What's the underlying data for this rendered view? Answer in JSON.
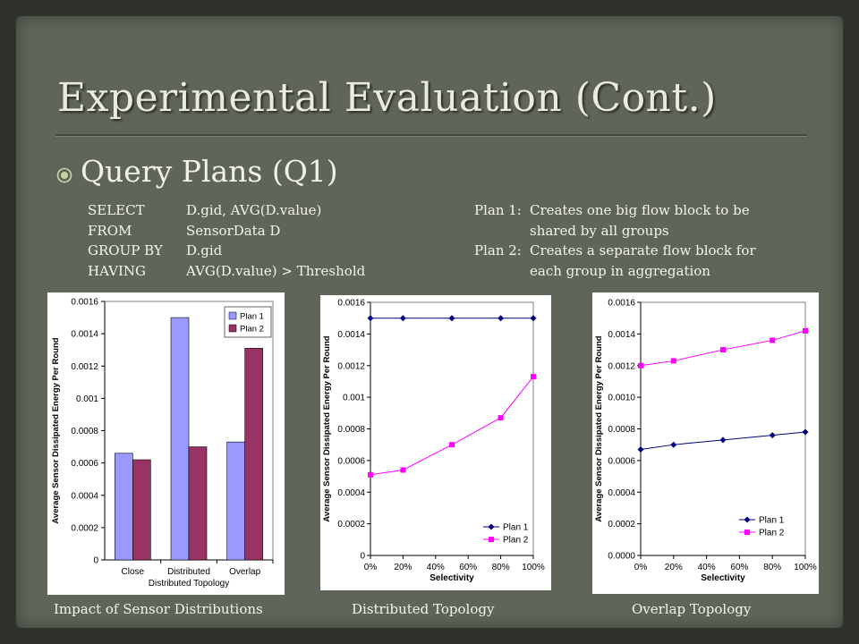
{
  "slide": {
    "title": "Experimental Evaluation (Cont.)",
    "bullet_icon": "circle-dot-bullet",
    "subheading": "Query Plans (Q1)",
    "sql": [
      {
        "keyword": "SELECT",
        "clause": "D.gid, AVG(D.value)"
      },
      {
        "keyword": "FROM",
        "clause": "SensorData D"
      },
      {
        "keyword": "GROUP BY",
        "clause": "D.gid"
      },
      {
        "keyword": "HAVING",
        "clause": "AVG(D.value) > Threshold"
      }
    ],
    "plans": [
      {
        "label": "Plan 1:",
        "line1": "Creates one big flow block to be",
        "line2": "shared by all groups"
      },
      {
        "label": "Plan 2:",
        "line1": "Creates a separate flow block for",
        "line2": "each group in aggregation"
      }
    ],
    "captions": [
      "Impact of Sensor Distributions",
      "Distributed Topology",
      "Overlap Topology"
    ],
    "colors": {
      "background": "#5f6559",
      "plan1_bar": "#9999ff",
      "plan2_bar": "#993366",
      "plan1_line": "#000080",
      "plan2_line": "#ff00ff"
    }
  },
  "chart_data": [
    {
      "type": "bar",
      "ylabel": "Average Sensor Dissipated Energy Per Round",
      "xlabel": "Distributed Topology",
      "categories": [
        "Close",
        "Distributed",
        "Overlap"
      ],
      "series": [
        {
          "name": "Plan 1",
          "values": [
            0.00066,
            0.0015,
            0.00073
          ]
        },
        {
          "name": "Plan 2",
          "values": [
            0.00062,
            0.0007,
            0.00131
          ]
        }
      ],
      "ylim": [
        0,
        0.0016
      ],
      "yticks": [
        "0",
        "0.0002",
        "0.0004",
        "0.0006",
        "0.0008",
        "0.001",
        "0.0012",
        "0.0014",
        "0.0016"
      ],
      "legend": "top-right"
    },
    {
      "type": "line",
      "ylabel": "Average Sensor Dissipated Energy Per Round",
      "xlabel": "Selectivity",
      "x": [
        0,
        20,
        50,
        80,
        100
      ],
      "xticks": [
        "0%",
        "20%",
        "40%",
        "60%",
        "80%",
        "100%"
      ],
      "series": [
        {
          "name": "Plan 1",
          "values": [
            0.0015,
            0.0015,
            0.0015,
            0.0015,
            0.0015
          ]
        },
        {
          "name": "Plan 2",
          "values": [
            0.00051,
            0.00054,
            0.0007,
            0.00087,
            0.00113
          ]
        }
      ],
      "ylim": [
        0,
        0.0016
      ],
      "yticks": [
        "0",
        "0.0002",
        "0.0004",
        "0.0006",
        "0.0008",
        "0.001",
        "0.0012",
        "0.0014",
        "0.0016"
      ],
      "legend": "bottom-right"
    },
    {
      "type": "line",
      "ylabel": "Average Sensor Dissipated Energy Per Round",
      "xlabel": "Selectivity",
      "x": [
        0,
        20,
        50,
        80,
        100
      ],
      "xticks": [
        "0%",
        "20%",
        "40%",
        "60%",
        "80%",
        "100%"
      ],
      "series": [
        {
          "name": "Plan 1",
          "values": [
            0.00067,
            0.0007,
            0.00073,
            0.00076,
            0.00078
          ]
        },
        {
          "name": "Plan 2",
          "values": [
            0.0012,
            0.00123,
            0.0013,
            0.00136,
            0.00142
          ]
        }
      ],
      "ylim": [
        0,
        0.0016
      ],
      "yticks": [
        "0.0000",
        "0.0002",
        "0.0004",
        "0.0006",
        "0.0008",
        "0.0010",
        "0.0012",
        "0.0014",
        "0.0016"
      ],
      "legend": "bottom-right"
    }
  ]
}
